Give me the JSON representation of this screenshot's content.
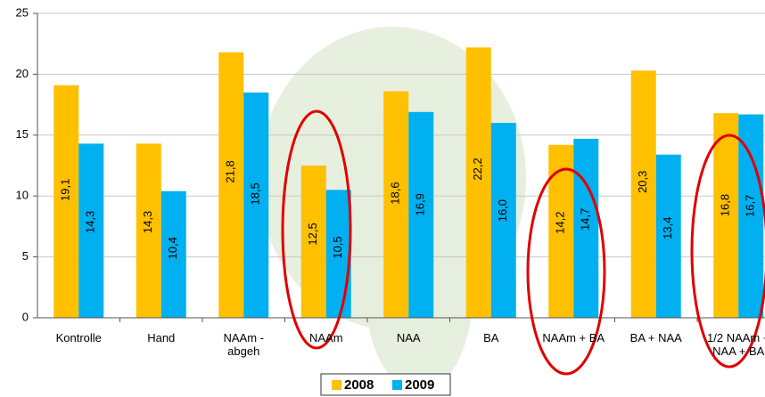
{
  "chart_data": {
    "type": "bar",
    "categories": [
      "Kontrolle",
      "Hand",
      "NAAm -\nabgeh",
      "NAAm",
      "NAA",
      "BA",
      "NAAm + BA",
      "BA + NAA",
      "1/2 NAAm +\nNAA + BA"
    ],
    "series": [
      {
        "name": "2008",
        "color": "#ffc000",
        "values": [
          19.1,
          14.3,
          21.8,
          12.5,
          18.6,
          22.2,
          14.2,
          20.3,
          16.8
        ],
        "value_labels": [
          "19,1",
          "14,3",
          "21,8",
          "12,5",
          "18,6",
          "22,2",
          "14,2",
          "20,3",
          "16,8"
        ]
      },
      {
        "name": "2009",
        "color": "#00b0f0",
        "values": [
          14.3,
          10.4,
          18.5,
          10.5,
          16.9,
          16.0,
          14.7,
          13.4,
          16.7
        ],
        "value_labels": [
          "14,3",
          "10,4",
          "18,5",
          "10,5",
          "16,9",
          "16,0",
          "14,7",
          "13,4",
          "16,7"
        ]
      }
    ],
    "ylim": [
      0,
      25
    ],
    "yticks": [
      0,
      5,
      10,
      15,
      20,
      25
    ],
    "grid": true,
    "legend": "bottom"
  }
}
